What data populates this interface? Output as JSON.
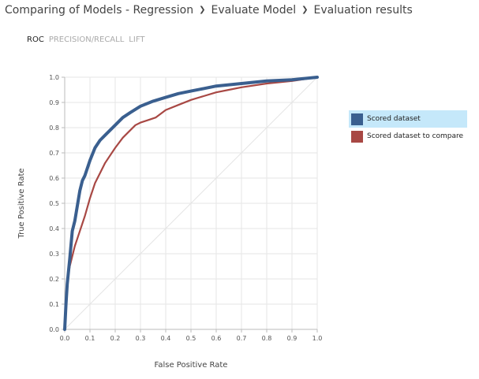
{
  "breadcrumb": {
    "items": [
      "Comparing of Models - Regression",
      "Evaluate Model",
      "Evaluation results"
    ]
  },
  "tabs": [
    {
      "label": "ROC",
      "active": true
    },
    {
      "label": "PRECISION/RECALL",
      "active": false
    },
    {
      "label": "LIFT",
      "active": false
    }
  ],
  "legend": {
    "items": [
      {
        "label": "Scored dataset",
        "color": "#3a5f8f",
        "selected": true
      },
      {
        "label": "Scored dataset to compare",
        "color": "#a84844",
        "selected": false
      }
    ]
  },
  "chart_data": {
    "type": "line",
    "xlabel": "False Positive Rate",
    "ylabel": "True Positive Rate",
    "xlim": [
      0,
      1
    ],
    "ylim": [
      0,
      1
    ],
    "xticks": [
      "0.0",
      "0.1",
      "0.2",
      "0.3",
      "0.4",
      "0.5",
      "0.6",
      "0.7",
      "0.8",
      "0.9",
      "1.0"
    ],
    "yticks": [
      "0.0",
      "0.1",
      "0.2",
      "0.3",
      "0.4",
      "0.5",
      "0.6",
      "0.7",
      "0.8",
      "0.9",
      "1.0"
    ],
    "grid": true,
    "diagonal": true,
    "legend_position": "right",
    "series": [
      {
        "name": "Scored dataset",
        "color": "#3a5f8f",
        "x": [
          0,
          0.005,
          0.01,
          0.02,
          0.03,
          0.04,
          0.05,
          0.06,
          0.07,
          0.08,
          0.1,
          0.12,
          0.14,
          0.16,
          0.18,
          0.2,
          0.23,
          0.26,
          0.3,
          0.35,
          0.4,
          0.45,
          0.5,
          0.55,
          0.6,
          0.65,
          0.7,
          0.8,
          0.9,
          1.0
        ],
        "y": [
          0,
          0.1,
          0.18,
          0.28,
          0.39,
          0.43,
          0.49,
          0.55,
          0.59,
          0.61,
          0.67,
          0.72,
          0.75,
          0.77,
          0.79,
          0.81,
          0.84,
          0.86,
          0.885,
          0.905,
          0.92,
          0.935,
          0.945,
          0.955,
          0.965,
          0.97,
          0.975,
          0.985,
          0.99,
          1.0
        ]
      },
      {
        "name": "Scored dataset to compare",
        "color": "#a84844",
        "x": [
          0,
          0.005,
          0.01,
          0.02,
          0.03,
          0.04,
          0.05,
          0.06,
          0.07,
          0.08,
          0.1,
          0.12,
          0.14,
          0.16,
          0.18,
          0.2,
          0.23,
          0.26,
          0.28,
          0.3,
          0.33,
          0.36,
          0.4,
          0.45,
          0.5,
          0.55,
          0.6,
          0.65,
          0.7,
          0.8,
          0.9,
          1.0
        ],
        "y": [
          0,
          0.12,
          0.19,
          0.25,
          0.29,
          0.33,
          0.36,
          0.39,
          0.42,
          0.45,
          0.52,
          0.58,
          0.62,
          0.66,
          0.69,
          0.72,
          0.76,
          0.79,
          0.81,
          0.82,
          0.83,
          0.84,
          0.87,
          0.89,
          0.91,
          0.925,
          0.94,
          0.95,
          0.96,
          0.975,
          0.985,
          1.0
        ]
      }
    ]
  }
}
